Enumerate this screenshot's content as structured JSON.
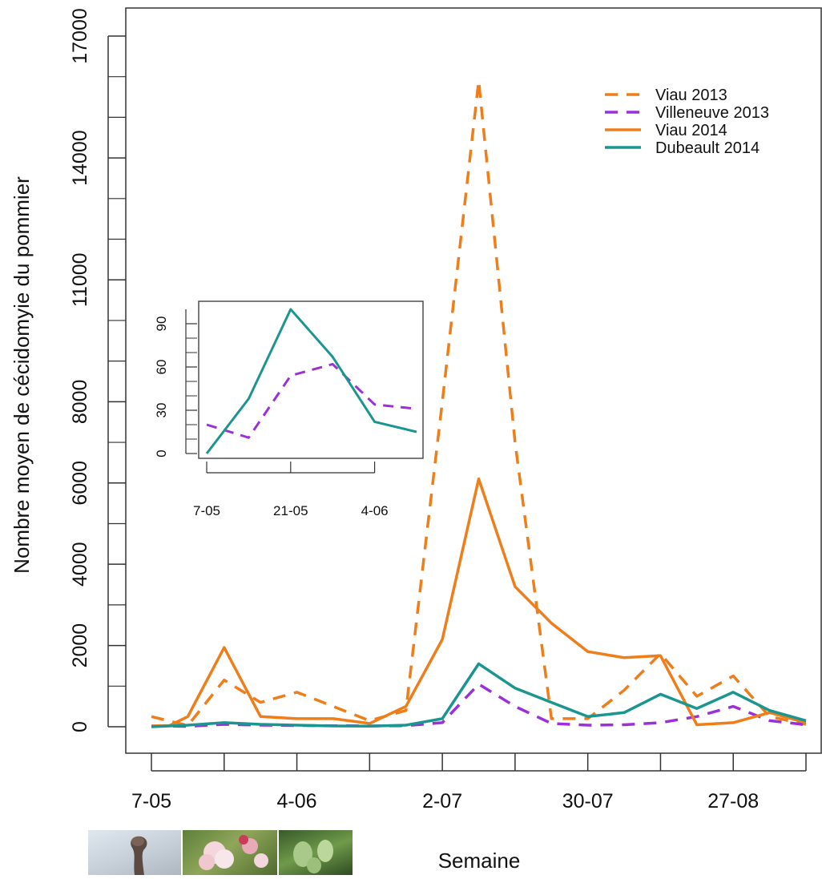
{
  "colors": {
    "viau": "#ef7d1a",
    "villeneuve": "#9b30d9",
    "dubeault": "#1b9590",
    "axis": "#333333"
  },
  "chart_data": [
    {
      "type": "line",
      "xlabel": "Semaine",
      "ylabel": "Nombre moyen de cécidomyie du pommier",
      "x_ticks": [
        {
          "index": 0,
          "label": "7-05"
        },
        {
          "index": 2,
          "label": ""
        },
        {
          "index": 4,
          "label": "4-06"
        },
        {
          "index": 6,
          "label": ""
        },
        {
          "index": 8,
          "label": "2-07"
        },
        {
          "index": 10,
          "label": ""
        },
        {
          "index": 12,
          "label": "30-07"
        },
        {
          "index": 14,
          "label": ""
        },
        {
          "index": 16,
          "label": "27-08"
        },
        {
          "index": 18,
          "label": ""
        }
      ],
      "xlim": [
        0,
        18
      ],
      "ylim": [
        0,
        17000
      ],
      "y_ticks": [
        0,
        2000,
        4000,
        6000,
        8000,
        11000,
        14000,
        17000
      ],
      "y_minor_ticks": [
        1000,
        3000,
        5000,
        7000,
        9000,
        10000,
        12000,
        13000,
        15000,
        16000
      ],
      "legend_position": "top-right",
      "series": [
        {
          "name": "Viau 2013",
          "color_key": "viau",
          "dash": true,
          "x": [
            0,
            1,
            2,
            3,
            4,
            5,
            6,
            7,
            8,
            9,
            10,
            11,
            12,
            13,
            14,
            15,
            16,
            17,
            18
          ],
          "y": [
            250,
            30,
            1150,
            600,
            850,
            500,
            150,
            400,
            8000,
            15900,
            7000,
            200,
            200,
            900,
            1800,
            750,
            1250,
            250,
            60
          ]
        },
        {
          "name": "Villeneuve 2013",
          "color_key": "villeneuve",
          "dash": true,
          "x": [
            0,
            1,
            2,
            3,
            4,
            5,
            6,
            7,
            8,
            9,
            10,
            11,
            12,
            13,
            14,
            15,
            16,
            17,
            18
          ],
          "y": [
            20,
            10,
            60,
            40,
            30,
            25,
            20,
            25,
            100,
            1050,
            500,
            80,
            40,
            50,
            100,
            250,
            500,
            150,
            50
          ]
        },
        {
          "name": "Viau 2014",
          "color_key": "viau",
          "dash": false,
          "x": [
            0,
            0.5,
            1,
            2,
            3,
            4,
            5,
            6,
            7,
            8,
            9,
            10,
            11,
            12,
            13,
            14,
            15,
            16,
            17,
            18
          ],
          "y": [
            20,
            30,
            250,
            1950,
            250,
            200,
            200,
            80,
            500,
            2150,
            6100,
            3450,
            2550,
            1850,
            1700,
            1750,
            50,
            100,
            350,
            100
          ]
        },
        {
          "name": "Dubeault 2014",
          "color_key": "dubeault",
          "dash": false,
          "x": [
            0,
            1,
            2,
            3,
            4,
            5,
            6,
            7,
            8,
            9,
            10,
            11,
            12,
            13,
            14,
            15,
            16,
            17,
            18
          ],
          "y": [
            0,
            40,
            100,
            60,
            40,
            20,
            15,
            40,
            200,
            1550,
            950,
            600,
            250,
            350,
            800,
            450,
            850,
            400,
            150
          ]
        }
      ]
    },
    {
      "type": "line",
      "xlim": [
        0,
        5
      ],
      "ylim": [
        0,
        100
      ],
      "y_ticks": [
        0,
        30,
        60,
        90
      ],
      "y_minor_ticks": [
        10,
        20,
        40,
        50,
        70,
        80
      ],
      "x_ticks": [
        {
          "index": 0,
          "label": "7-05"
        },
        {
          "index": 2,
          "label": "21-05"
        },
        {
          "index": 4,
          "label": "4-06"
        }
      ],
      "series": [
        {
          "color_key": "villeneuve",
          "dash": true,
          "x": [
            0,
            1,
            2,
            3,
            4,
            5
          ],
          "y": [
            20,
            11,
            54,
            62,
            34,
            31
          ]
        },
        {
          "color_key": "dubeault",
          "dash": false,
          "x": [
            0,
            1,
            2,
            3,
            4,
            5
          ],
          "y": [
            0,
            38,
            100,
            67,
            22,
            15
          ]
        }
      ]
    }
  ]
}
